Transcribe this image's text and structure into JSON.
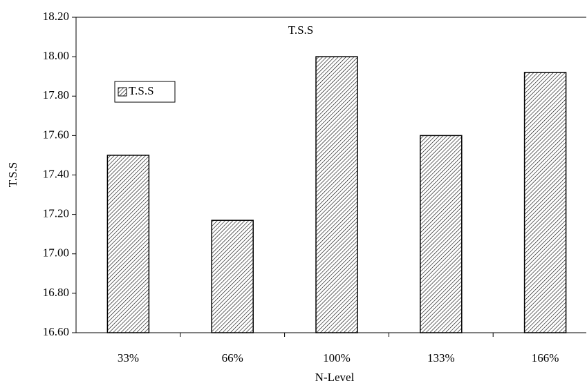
{
  "chart_data": {
    "type": "bar",
    "title": "T.S.S",
    "x_label": "N-Level",
    "y_label": "T.S.S",
    "categories": [
      "33%",
      "66%",
      "100%",
      "133%",
      "166%"
    ],
    "series": [
      {
        "name": "T.S.S",
        "color": "#000000",
        "values": [
          17.5,
          17.17,
          18.0,
          17.6,
          17.92
        ]
      }
    ],
    "ylim": [
      16.6,
      18.2
    ],
    "yticks": [
      {
        "value": 16.6,
        "label": "16.60"
      },
      {
        "value": 16.8,
        "label": "16.80"
      },
      {
        "value": 17.0,
        "label": "17.00"
      },
      {
        "value": 17.2,
        "label": "17.20"
      },
      {
        "value": 17.4,
        "label": "17.40"
      },
      {
        "value": 17.6,
        "label": "17.60"
      },
      {
        "value": 17.8,
        "label": "17.80"
      },
      {
        "value": 18.0,
        "label": "18.00"
      },
      {
        "value": 18.2,
        "label": "18.20"
      }
    ],
    "grid": false,
    "legend": "upper-left"
  }
}
